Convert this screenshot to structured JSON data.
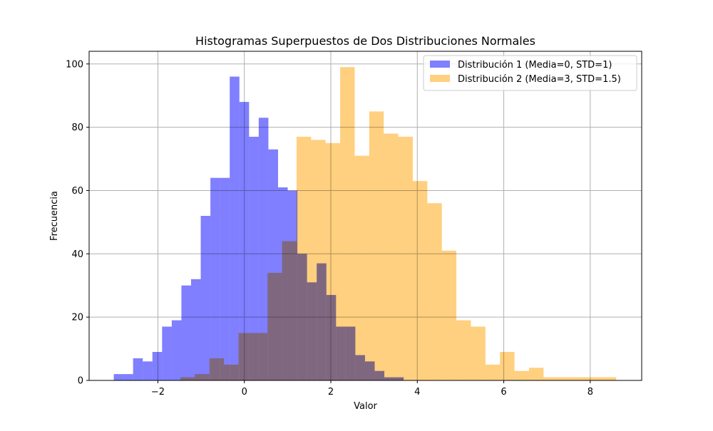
{
  "chart_data": {
    "type": "bar",
    "title": "Histogramas Superpuestos de Dos Distribuciones Normales",
    "xlabel": "Valor",
    "ylabel": "Frecuencia",
    "xlim": [
      -3.59,
      9.19
    ],
    "ylim": [
      0,
      104
    ],
    "xticks": [
      -2,
      0,
      2,
      4,
      6,
      8
    ],
    "yticks": [
      0,
      20,
      40,
      60,
      80,
      100
    ],
    "grid": true,
    "legend_position": "top-right",
    "overlap_color": "#c09a85",
    "series": [
      {
        "name": "Distribución 1 (Media=0, STD=1)",
        "color": "#7f7fff",
        "bin_start": -3.02,
        "bin_width": 0.2235,
        "values": [
          2,
          2,
          7,
          6,
          9,
          17,
          19,
          30,
          32,
          52,
          64,
          64,
          96,
          88,
          77,
          83,
          73,
          61,
          60,
          40,
          31,
          37,
          27,
          17,
          17,
          8,
          6,
          3,
          1,
          1
        ]
      },
      {
        "name": "Distribución 2 (Media=3, STD=1.5)",
        "color": "#ffd07f",
        "bin_start": -1.48,
        "bin_width": 0.336,
        "values": [
          1,
          2,
          7,
          5,
          15,
          15,
          34,
          44,
          77,
          76,
          75,
          99,
          71,
          85,
          78,
          77,
          63,
          56,
          41,
          19,
          17,
          5,
          9,
          3,
          4,
          1,
          1,
          1,
          1,
          1
        ]
      }
    ]
  }
}
